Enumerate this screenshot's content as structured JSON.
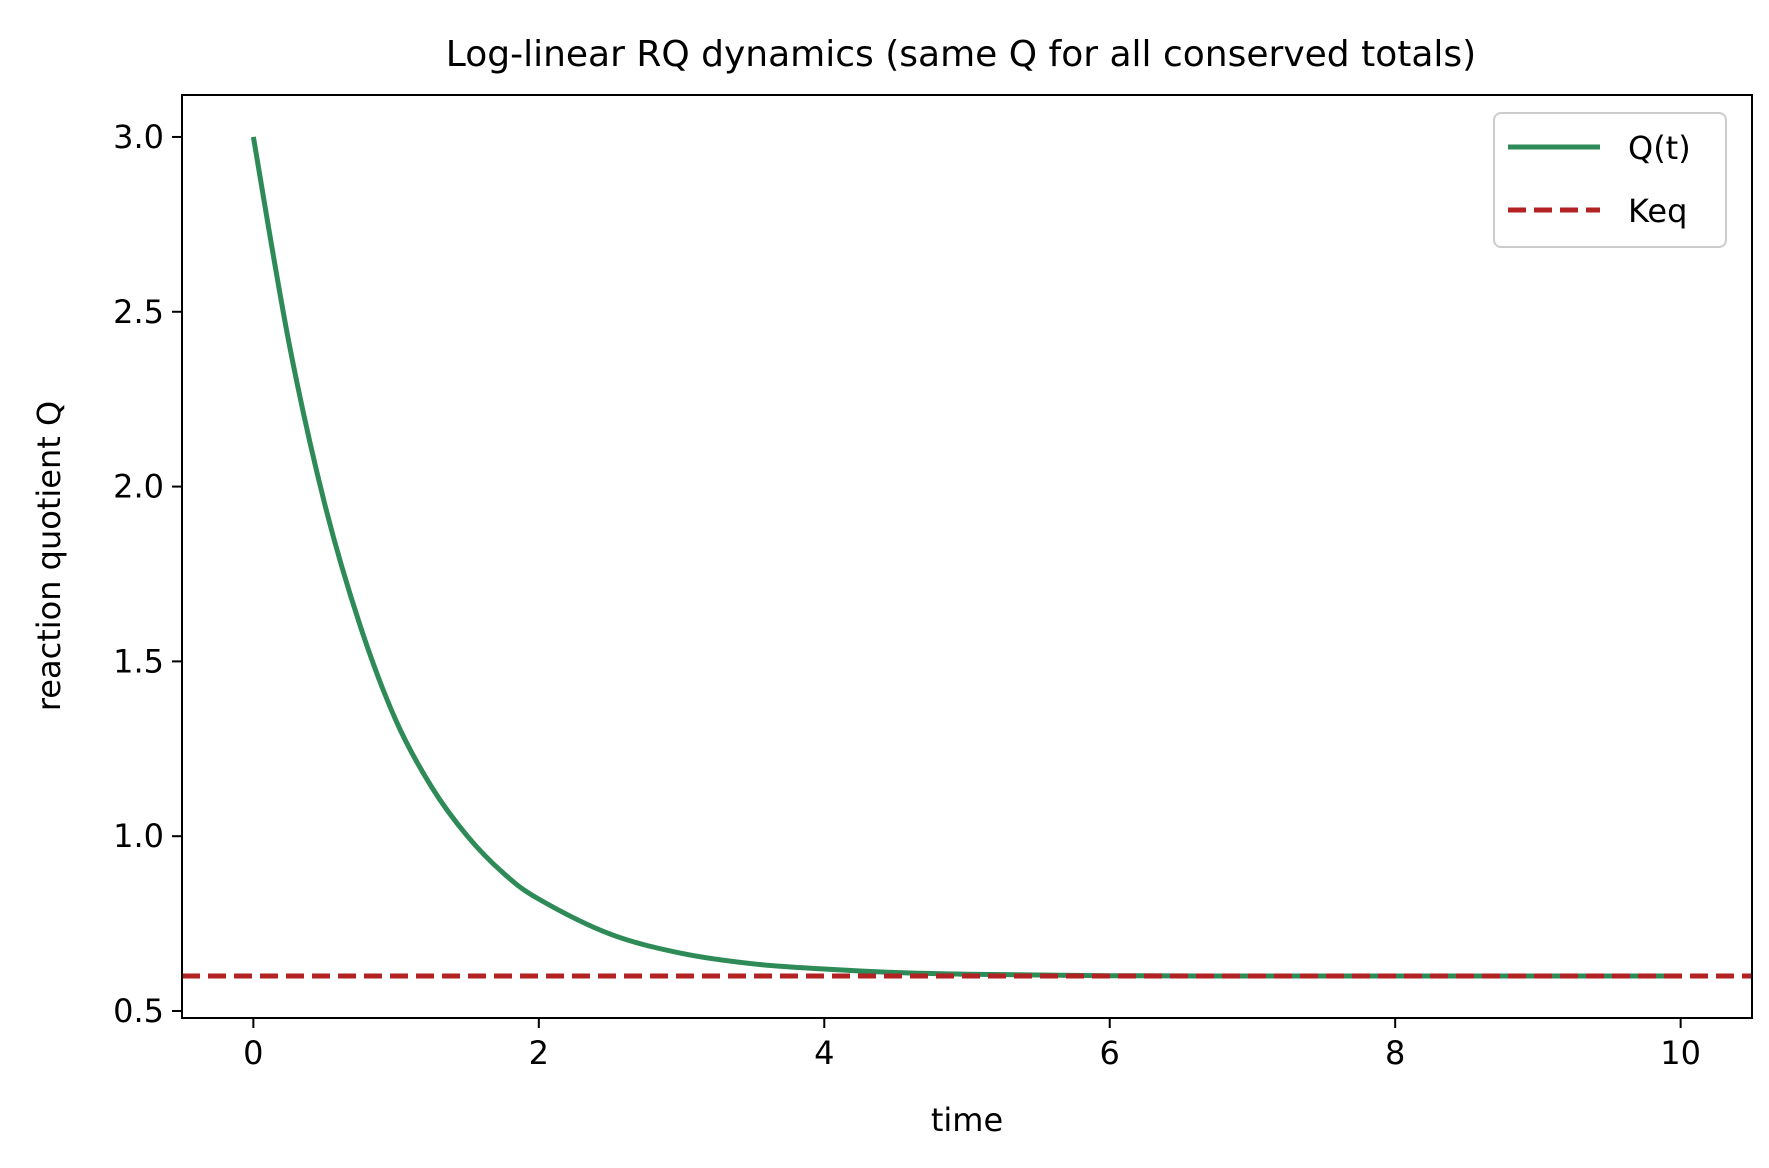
{
  "chart_data": {
    "type": "line",
    "title": "Log-linear RQ dynamics (same Q for all conserved totals)",
    "xlabel": "time",
    "ylabel": "reaction quotient Q",
    "xlim": [
      -0.5,
      10.5
    ],
    "ylim": [
      0.48,
      3.12
    ],
    "xticks": [
      0,
      2,
      4,
      6,
      8,
      10
    ],
    "yticks": [
      0.5,
      1.0,
      1.5,
      2.0,
      2.5,
      3.0
    ],
    "xtick_labels": [
      "0",
      "2",
      "4",
      "6",
      "8",
      "10"
    ],
    "ytick_labels": [
      "0.5",
      "1.0",
      "1.5",
      "2.0",
      "2.5",
      "3.0"
    ],
    "grid": false,
    "legend_position": "top-right",
    "series": [
      {
        "name": "Q(t)",
        "style": "solid",
        "color": "#2e8b57",
        "x": [
          0,
          0.25,
          0.5,
          0.75,
          1.0,
          1.25,
          1.5,
          1.75,
          2.0,
          2.5,
          3.0,
          3.5,
          4.0,
          4.5,
          5.0,
          5.5,
          6.0,
          7.0,
          8.0,
          9.0,
          10.0
        ],
        "y": [
          3.0,
          2.41,
          1.95,
          1.6,
          1.33,
          1.14,
          1.0,
          0.895,
          0.82,
          0.72,
          0.665,
          0.635,
          0.62,
          0.61,
          0.605,
          0.603,
          0.601,
          0.6,
          0.6,
          0.6,
          0.6
        ]
      },
      {
        "name": "Keq",
        "style": "dashed",
        "color": "#b22222",
        "x": [
          -0.5,
          10.5
        ],
        "y": [
          0.6,
          0.6
        ]
      }
    ]
  }
}
